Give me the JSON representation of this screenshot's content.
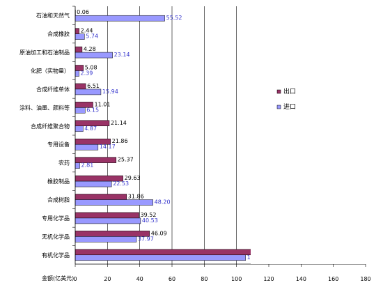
{
  "chart_data": {
    "type": "bar",
    "orientation": "horizontal",
    "categories": [
      "石油和天然气",
      "合成橡胶",
      "原油加工和石油制品",
      "化肥（实物量）",
      "合成纤维单体",
      "涂料、油墨、颜料等",
      "合成纤维聚合物",
      "专用设备",
      "农药",
      "橡胶制品",
      "合成树脂",
      "专用化学品",
      "无机化学品",
      "有机化学品"
    ],
    "series": [
      {
        "name": "出口",
        "color": "#993366",
        "values": [
          0.06,
          2.44,
          4.28,
          5.08,
          6.51,
          11.01,
          21.14,
          21.86,
          25.37,
          29.63,
          31.86,
          39.52,
          46.09,
          152.96
        ]
      },
      {
        "name": "进口",
        "color": "#9999ff",
        "values": [
          55.52,
          5.74,
          23.14,
          2.39,
          15.94,
          6.15,
          4.87,
          14.17,
          2.81,
          22.53,
          48.2,
          40.53,
          37.97,
          105.59
        ]
      }
    ],
    "value_labels": {
      "出口": [
        "0.06",
        "2.44",
        "4.28",
        "5.08",
        "6.51",
        "11.01",
        "21.14",
        "21.86",
        "25.37",
        "29.63",
        "31.86",
        "39.52",
        "46.09",
        "152.96"
      ],
      "进口": [
        "55.52",
        "5.74",
        "23.14",
        "2.39",
        "15.94",
        "6.15",
        "4.87",
        "14.17",
        "2.81",
        "22.53",
        "48.20",
        "40.53",
        "37.97",
        "105.59"
      ]
    },
    "xlabel": "金额(亿美元)",
    "xlim": [
      0,
      180
    ],
    "xticks": [
      0,
      20,
      40,
      60,
      80,
      100,
      120,
      140,
      160,
      180
    ],
    "grid": "vertical",
    "legend": "right"
  }
}
